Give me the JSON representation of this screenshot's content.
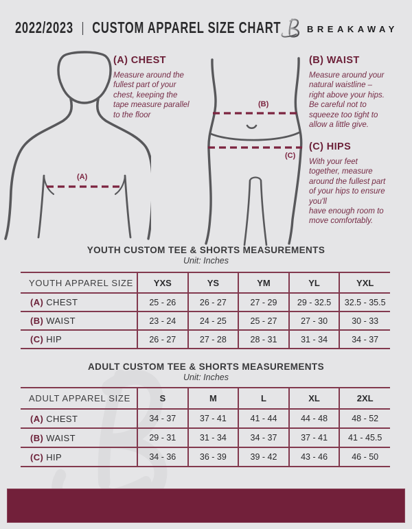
{
  "colors": {
    "background": "#e5e5e7",
    "maroon_accent": "#72203a",
    "table_line": "#82394e",
    "heading_maroon": "#6b1f37",
    "body_maroon": "#752b45",
    "figure_line": "#58585b",
    "dashed_line": "#7c2440",
    "dark_text": "#323234",
    "watermark": "#dcdcde"
  },
  "header": {
    "year": "2022/2023",
    "separator": "|",
    "title": "CUSTOM APPAREL SIZE CHART",
    "brand": "BREAKAWAY",
    "logo_icon": "breakaway-b-logo"
  },
  "guide": {
    "chest": {
      "heading": "(A) CHEST",
      "body": "Measure around the\nfullest part of your\nchest, keeping the\ntape measure parallel\nto the floor",
      "marker": "(A)"
    },
    "waist": {
      "heading": "(B) WAIST",
      "body": "Measure around your\nnatural waistline –\nright above your hips.\nBe careful not to\nsqueeze too tight to\nallow a little give.",
      "marker": "(B)"
    },
    "hips": {
      "heading": "(C) HIPS",
      "body": "With your feet\ntogether, measure\naround the fullest part\nof your hips to ensure\nyou'll\nhave enough room to\nmove comfortably.",
      "marker": "(C)"
    }
  },
  "youth": {
    "title": "YOUTH CUSTOM TEE & SHORTS MEASUREMENTS",
    "unit": "Unit: Inches",
    "columns": [
      "YOUTH APPAREL SIZE",
      "YXS",
      "YS",
      "YM",
      "YL",
      "YXL"
    ],
    "rows": [
      {
        "prefix": "(A)",
        "label": "CHEST",
        "values": [
          "25 - 26",
          "26 - 27",
          "27 - 29",
          "29 - 32.5",
          "32.5 - 35.5"
        ]
      },
      {
        "prefix": "(B)",
        "label": "WAIST",
        "values": [
          "23 - 24",
          "24 - 25",
          "25 - 27",
          "27 - 30",
          "30 - 33"
        ]
      },
      {
        "prefix": "(C)",
        "label": "HIP",
        "values": [
          "26 - 27",
          "27 - 28",
          "28 - 31",
          "31 - 34",
          "34 - 37"
        ]
      }
    ]
  },
  "adult": {
    "title": "ADULT CUSTOM TEE & SHORTS MEASUREMENTS",
    "unit": "Unit: Inches",
    "columns": [
      "ADULT APPAREL SIZE",
      "S",
      "M",
      "L",
      "XL",
      "2XL"
    ],
    "rows": [
      {
        "prefix": "(A)",
        "label": "CHEST",
        "values": [
          "34 - 37",
          "37 - 41",
          "41 - 44",
          "44 - 48",
          "48 - 52"
        ]
      },
      {
        "prefix": "(B)",
        "label": "WAIST",
        "values": [
          "29 - 31",
          "31 - 34",
          "34 - 37",
          "37 - 41",
          "41 - 45.5"
        ]
      },
      {
        "prefix": "(C)",
        "label": "HIP",
        "values": [
          "34 - 36",
          "36 - 39",
          "39 - 42",
          "43 - 46",
          "46 - 50"
        ]
      }
    ]
  }
}
